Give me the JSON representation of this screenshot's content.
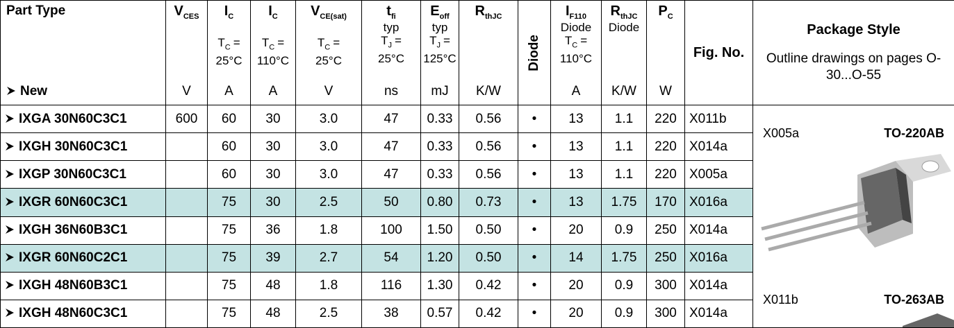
{
  "header": {
    "columns": [
      {
        "title": "Part Type",
        "unit": "New"
      },
      {
        "symbol": "V",
        "sub": "CES",
        "unit": "V"
      },
      {
        "symbol": "I",
        "sub": "C",
        "condition": {
          "symbol": "T",
          "sub": "C",
          "relation": "=",
          "value": "25°C"
        },
        "unit": "A"
      },
      {
        "symbol": "I",
        "sub": "C",
        "condition": {
          "symbol": "T",
          "sub": "C",
          "relation": "=",
          "value": "110°C"
        },
        "unit": "A"
      },
      {
        "symbol": "V",
        "sub": "CE(sat)",
        "condition": {
          "symbol": "T",
          "sub": "C",
          "relation": "=",
          "value": "25°C"
        },
        "unit": "V"
      },
      {
        "symbol": "t",
        "sub": "fi",
        "note": "typ",
        "condition": {
          "symbol": "T",
          "sub": "J",
          "relation": "=",
          "value": "25°C"
        },
        "unit": "ns"
      },
      {
        "symbol": "E",
        "sub": "off",
        "note": "typ",
        "condition": {
          "symbol": "T",
          "sub": "J",
          "relation": "=",
          "value": "125°C"
        },
        "unit": "mJ"
      },
      {
        "symbol": "R",
        "sub": "thJC",
        "unit": "K/W"
      },
      {
        "title": "Diode",
        "orientation": "vertical"
      },
      {
        "symbol": "I",
        "sub": "F110",
        "note": "Diode",
        "condition": {
          "symbol": "T",
          "sub": "C",
          "relation": "=",
          "value": "110°C"
        },
        "unit": "A"
      },
      {
        "symbol": "R",
        "sub": "thJC",
        "note": "Diode",
        "unit": "K/W"
      },
      {
        "symbol": "P",
        "sub": "C",
        "unit": "W"
      },
      {
        "title": "Fig. No."
      },
      {
        "title": "Package Style",
        "note": "Outline drawings on pages O-30...O-55"
      }
    ]
  },
  "rows": [
    {
      "part": "IXGA 30N60C3C1",
      "cells": [
        "600",
        "60",
        "30",
        "3.0",
        "47",
        "0.33",
        "0.56",
        "•",
        "13",
        "1.1",
        "220",
        "X011b"
      ]
    },
    {
      "part": "IXGH 30N60C3C1",
      "cells": [
        null,
        "60",
        "30",
        "3.0",
        "47",
        "0.33",
        "0.56",
        "•",
        "13",
        "1.1",
        "220",
        "X014a"
      ]
    },
    {
      "part": "IXGP 30N60C3C1",
      "cells": [
        null,
        "60",
        "30",
        "3.0",
        "47",
        "0.33",
        "0.56",
        "•",
        "13",
        "1.1",
        "220",
        "X005a"
      ]
    },
    {
      "part": "IXGR 60N60C3C1",
      "cells": [
        null,
        "75",
        "30",
        "2.5",
        "50",
        "0.80",
        "0.73",
        "•",
        "13",
        "1.75",
        "170",
        "X016a"
      ],
      "highlight": true
    },
    {
      "part": "IXGH 36N60B3C1",
      "cells": [
        null,
        "75",
        "36",
        "1.8",
        "100",
        "1.50",
        "0.50",
        "•",
        "20",
        "0.9",
        "250",
        "X014a"
      ]
    },
    {
      "part": "IXGR 60N60C2C1",
      "cells": [
        null,
        "75",
        "39",
        "2.7",
        "54",
        "1.20",
        "0.50",
        "•",
        "14",
        "1.75",
        "250",
        "X016a"
      ],
      "highlight": true
    },
    {
      "part": "IXGH 48N60B3C1",
      "cells": [
        null,
        "75",
        "48",
        "1.8",
        "116",
        "1.30",
        "0.42",
        "•",
        "20",
        "0.9",
        "300",
        "X014a"
      ]
    },
    {
      "part": "IXGH 48N60C3C1",
      "cells": [
        null,
        "75",
        "48",
        "2.5",
        "38",
        "0.57",
        "0.42",
        "•",
        "20",
        "0.9",
        "300",
        "X014a"
      ]
    }
  ],
  "highlight_color": "#c4e3e3",
  "packages": [
    {
      "fig": "X005a",
      "name": "TO-220AB"
    },
    {
      "fig": "X011b",
      "name": "TO-263AB"
    }
  ]
}
